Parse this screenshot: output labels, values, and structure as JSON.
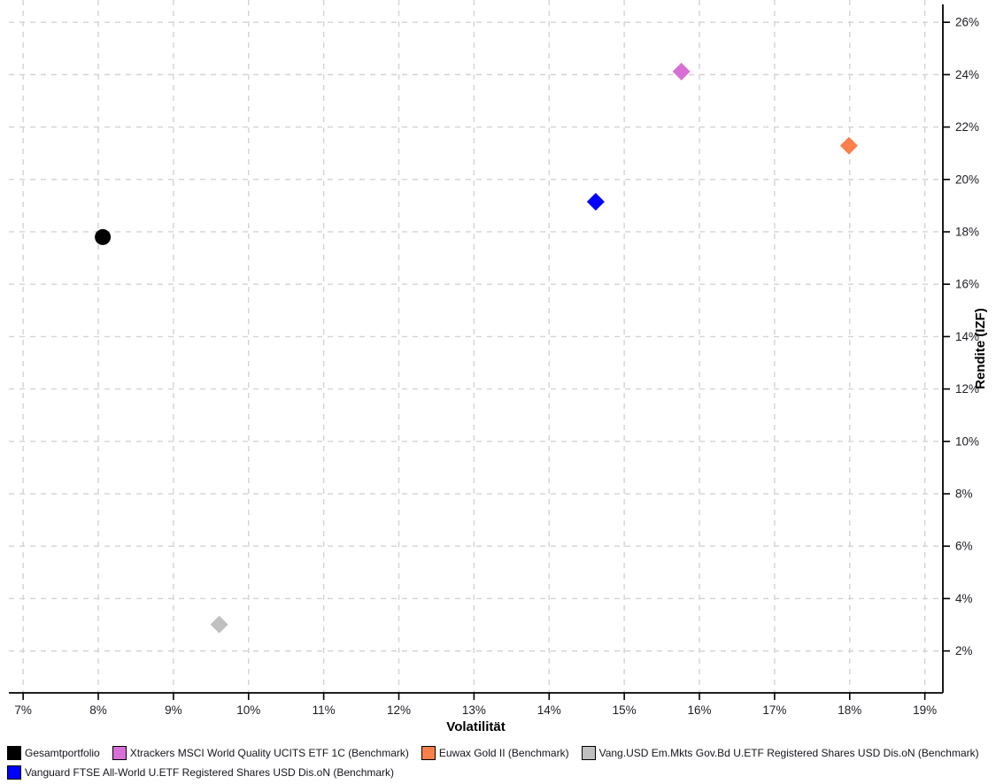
{
  "chart_data": {
    "type": "scatter",
    "title": "",
    "xlabel": "Volatilität",
    "ylabel": "Rendite (IZF)",
    "x_unit": "%",
    "y_unit": "%",
    "xlim": [
      6.81,
      19.24
    ],
    "ylim": [
      0.4,
      26.85
    ],
    "x_ticks": [
      7,
      8,
      9,
      10,
      11,
      12,
      13,
      14,
      15,
      16,
      17,
      18,
      19
    ],
    "y_ticks": [
      2,
      4,
      6,
      8,
      10,
      12,
      14,
      16,
      18,
      20,
      22,
      24,
      26
    ],
    "grid": "dashed",
    "grid_color": "#d3d3d3",
    "axis_color": "#000000",
    "tick_label_color": "#1c1c24",
    "legend_position": "bottom",
    "series": [
      {
        "name": "Gesamtportfolio",
        "marker": "circle",
        "color": "#000000",
        "x": 8.06,
        "y": 17.8
      },
      {
        "name": "Xtrackers MSCI World Quality UCITS ETF 1C (Benchmark)",
        "marker": "diamond",
        "color": "#d96fd6",
        "x": 15.76,
        "y": 24.12
      },
      {
        "name": "Euwax Gold II (Benchmark)",
        "marker": "diamond",
        "color": "#fa7f4b",
        "x": 17.99,
        "y": 21.29
      },
      {
        "name": "Vang.USD Em.Mkts Gov.Bd U.ETF Registered Shares USD Dis.oN (Benchmark)",
        "marker": "diamond",
        "color": "#c0c0c0",
        "x": 9.61,
        "y": 3.01
      },
      {
        "name": "Vanguard FTSE All-World U.ETF Registered Shares USD Dis.oN (Benchmark)",
        "marker": "diamond",
        "color": "#0000fe",
        "x": 14.62,
        "y": 19.15
      }
    ],
    "legend_rows": [
      [
        0,
        1,
        2,
        3
      ],
      [
        4
      ]
    ]
  }
}
